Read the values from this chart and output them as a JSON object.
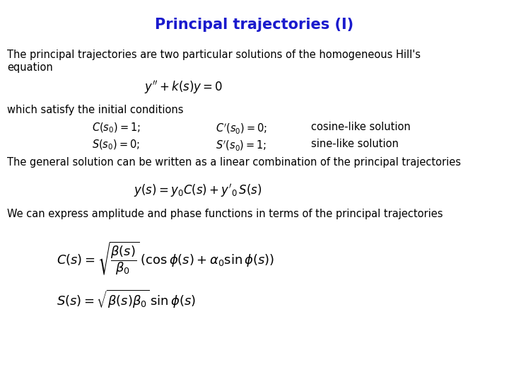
{
  "title": "Principal trajectories (I)",
  "title_color": "#1a1acd",
  "title_fontsize": 15,
  "background_color": "#ffffff",
  "text_color": "#000000",
  "body_fontsize": 10.5,
  "eq_fontsize": 11,
  "para1_line1": "The principal trajectories are two particular solutions of the homogeneous Hill's",
  "para1_line2": "equation",
  "eq1": "$y''+k(s)y=0$",
  "para2": "which satisfy the initial conditions",
  "row1_col1": "$C(s_0) = 1;$",
  "row1_col2": "$C'(s_0) = 0;$",
  "row1_col3": "cosine-like solution",
  "row2_col1": "$S(s_0) = 0;$",
  "row2_col2": "$S'(s_0) = 1;$",
  "row2_col3": "sine-like solution",
  "para3": "The general solution can be written as a linear combination of the principal trajectories",
  "eq2": "$y(s) = y_0C(s) + y'_0\\, S(s)$",
  "para4": "We can express amplitude and phase functions in terms of the principal trajectories",
  "eq3": "$C(s) = \\sqrt{\\dfrac{\\beta(s)}{\\beta_0}}\\,(\\cos\\phi(s) + \\alpha_0 \\sin\\phi(s))$",
  "eq4": "$S(s) = \\sqrt{\\beta(s)\\beta_0}\\, \\sin\\phi(s)$"
}
